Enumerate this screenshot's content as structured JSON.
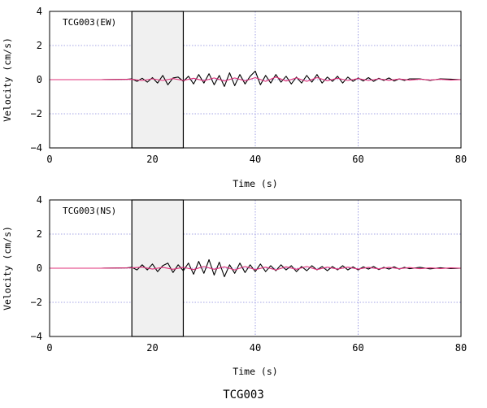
{
  "figure_title": "TCG003",
  "chart_data": [
    {
      "type": "line",
      "title": "TCG003(EW)",
      "xlabel": "Time (s)",
      "ylabel": "Velocity (cm/s)",
      "xlim": [
        0,
        80
      ],
      "ylim": [
        -4,
        4
      ],
      "xticks": [
        0,
        20,
        40,
        60,
        80
      ],
      "yticks": [
        4,
        2,
        0,
        -2,
        -4
      ],
      "grid": true,
      "highlight_window": {
        "x_start": 16,
        "x_end": 26,
        "fill": "#f0f0f0"
      },
      "series": [
        {
          "color": "#000000",
          "x": [
            0,
            10,
            15,
            16,
            17,
            18,
            19,
            20,
            21,
            22,
            23,
            24,
            25,
            26,
            27,
            28,
            29,
            30,
            31,
            32,
            33,
            34,
            35,
            36,
            37,
            38,
            39,
            40,
            41,
            42,
            43,
            44,
            45,
            46,
            47,
            48,
            49,
            50,
            51,
            52,
            53,
            54,
            55,
            56,
            57,
            58,
            59,
            60,
            61,
            62,
            63,
            64,
            65,
            66,
            67,
            68,
            69,
            70,
            72,
            74,
            76,
            78,
            80
          ],
          "y": [
            0,
            0,
            0.02,
            0.05,
            -0.1,
            0.08,
            -0.15,
            0.12,
            -0.2,
            0.25,
            -0.3,
            0.1,
            0.15,
            -0.1,
            0.2,
            -0.25,
            0.3,
            -0.2,
            0.35,
            -0.3,
            0.25,
            -0.4,
            0.4,
            -0.35,
            0.3,
            -0.25,
            0.2,
            0.5,
            -0.3,
            0.25,
            -0.2,
            0.3,
            -0.15,
            0.2,
            -0.25,
            0.15,
            -0.2,
            0.25,
            -0.15,
            0.3,
            -0.2,
            0.15,
            -0.1,
            0.2,
            -0.2,
            0.15,
            -0.1,
            0.1,
            -0.08,
            0.12,
            -0.1,
            0.08,
            -0.05,
            0.1,
            -0.08,
            0.05,
            -0.05,
            0.05,
            0.05,
            -0.05,
            0.05,
            0.03,
            0
          ]
        },
        {
          "color": "#e0307a",
          "x": [
            0,
            10,
            16,
            18,
            20,
            22,
            24,
            26,
            28,
            30,
            32,
            34,
            36,
            38,
            40,
            42,
            44,
            46,
            48,
            50,
            52,
            54,
            56,
            58,
            60,
            62,
            64,
            66,
            68,
            70,
            72,
            74,
            76,
            78,
            80
          ],
          "y": [
            0,
            0,
            0.02,
            -0.05,
            0.05,
            -0.05,
            0.06,
            -0.05,
            0.08,
            -0.06,
            0.1,
            -0.08,
            0.1,
            -0.07,
            0.12,
            -0.1,
            0.15,
            -0.08,
            0.1,
            -0.1,
            0.12,
            -0.06,
            0.08,
            -0.05,
            0.06,
            -0.05,
            0.05,
            -0.04,
            0.04,
            -0.03,
            0.03,
            -0.02,
            0.02,
            -0.02,
            0
          ]
        }
      ]
    },
    {
      "type": "line",
      "title": "TCG003(NS)",
      "xlabel": "Time (s)",
      "ylabel": "Velocity (cm/s)",
      "xlim": [
        0,
        80
      ],
      "ylim": [
        -4,
        4
      ],
      "xticks": [
        0,
        20,
        40,
        60,
        80
      ],
      "yticks": [
        4,
        2,
        0,
        -2,
        -4
      ],
      "grid": true,
      "highlight_window": {
        "x_start": 16,
        "x_end": 26,
        "fill": "#f0f0f0"
      },
      "series": [
        {
          "color": "#000000",
          "x": [
            0,
            10,
            15,
            16,
            17,
            18,
            19,
            20,
            21,
            22,
            23,
            24,
            25,
            26,
            27,
            28,
            29,
            30,
            31,
            32,
            33,
            34,
            35,
            36,
            37,
            38,
            39,
            40,
            41,
            42,
            43,
            44,
            45,
            46,
            47,
            48,
            49,
            50,
            51,
            52,
            53,
            54,
            55,
            56,
            57,
            58,
            59,
            60,
            61,
            62,
            63,
            64,
            65,
            66,
            67,
            68,
            69,
            70,
            72,
            74,
            76,
            78,
            80
          ],
          "y": [
            0,
            0,
            0.02,
            0.05,
            -0.1,
            0.2,
            -0.1,
            0.25,
            -0.2,
            0.15,
            0.3,
            -0.25,
            0.2,
            -0.15,
            0.3,
            -0.35,
            0.4,
            -0.3,
            0.5,
            -0.4,
            0.35,
            -0.5,
            0.2,
            -0.3,
            0.3,
            -0.25,
            0.2,
            -0.2,
            0.25,
            -0.2,
            0.15,
            -0.15,
            0.2,
            -0.1,
            0.15,
            -0.2,
            0.1,
            -0.15,
            0.15,
            -0.1,
            0.1,
            -0.15,
            0.1,
            -0.1,
            0.15,
            -0.1,
            0.08,
            -0.1,
            0.08,
            -0.05,
            0.1,
            -0.08,
            0.05,
            -0.05,
            0.08,
            -0.05,
            0.05,
            -0.03,
            0.05,
            -0.04,
            0.03,
            -0.02,
            0
          ]
        },
        {
          "color": "#e0307a",
          "x": [
            0,
            10,
            16,
            18,
            20,
            22,
            24,
            26,
            28,
            30,
            32,
            34,
            36,
            38,
            40,
            42,
            44,
            46,
            48,
            50,
            52,
            54,
            56,
            58,
            60,
            62,
            64,
            66,
            68,
            70,
            72,
            74,
            76,
            78,
            80
          ],
          "y": [
            0,
            0,
            0.02,
            0.06,
            -0.05,
            0.05,
            -0.06,
            0.05,
            -0.08,
            0.1,
            -0.06,
            0.08,
            -0.1,
            0.1,
            -0.08,
            0.06,
            -0.1,
            0.08,
            -0.06,
            0.1,
            -0.08,
            0.06,
            -0.05,
            0.06,
            -0.05,
            0.05,
            -0.04,
            0.05,
            -0.03,
            0.04,
            -0.03,
            0.02,
            -0.02,
            0.02,
            0
          ]
        }
      ]
    }
  ]
}
